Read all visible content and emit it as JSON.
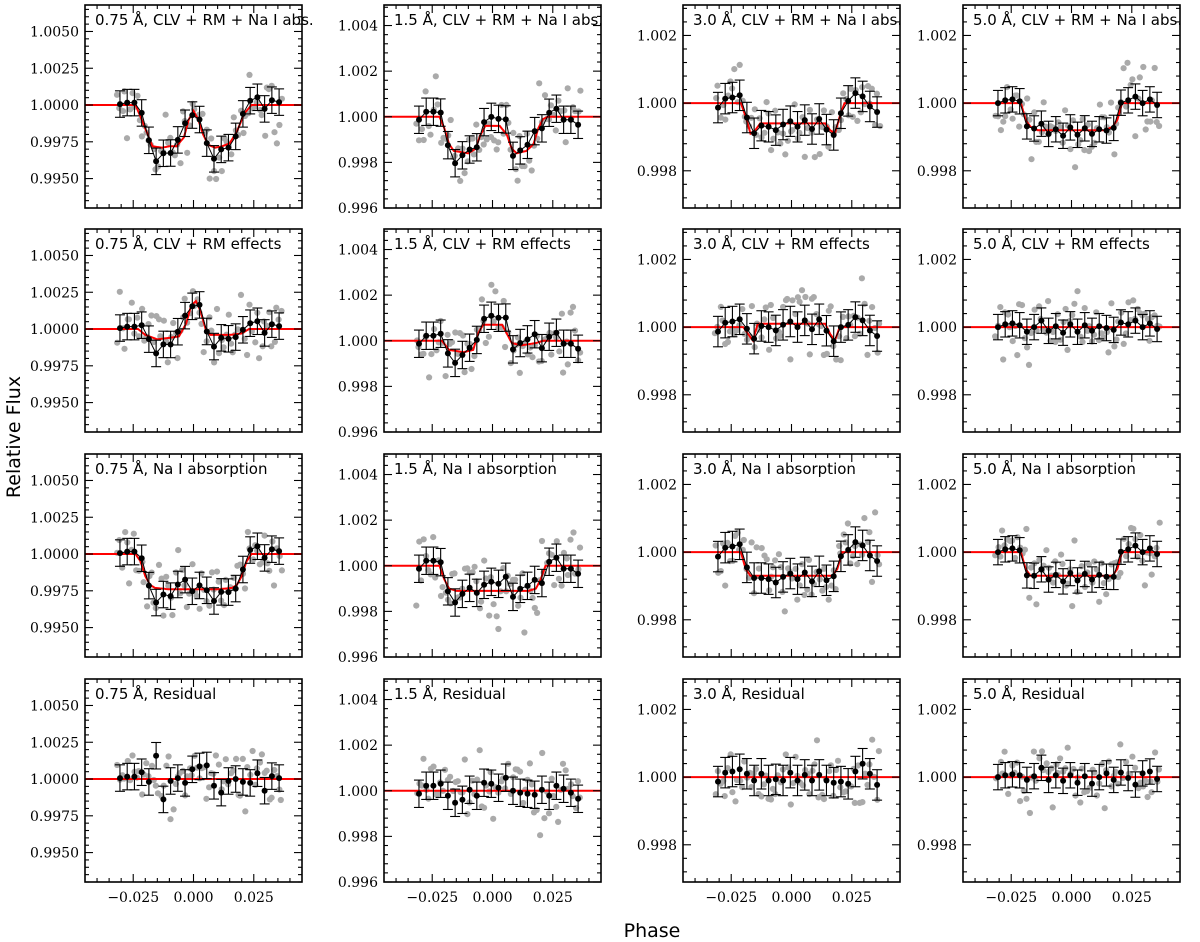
{
  "figure": {
    "xlabel": "Phase",
    "ylabel": "Relative Flux"
  },
  "style": {
    "model_color": "#ff0000",
    "binned_color": "#000000",
    "raw_color": "#aaaaaa"
  },
  "xaxis": {
    "range": [
      -0.045,
      0.045
    ],
    "ticks": [
      -0.025,
      0.0,
      0.025
    ],
    "tick_labels": [
      "−0.025",
      "0.000",
      "0.025"
    ]
  },
  "columns": [
    {
      "key": "0.75",
      "ylim": [
        0.993,
        1.0068
      ],
      "ticks": [
        0.995,
        0.9975,
        1.0,
        1.0025,
        1.005
      ],
      "tick_labels": [
        "0.9950",
        "0.9975",
        "1.0000",
        "1.0025",
        "1.0050"
      ],
      "noise": 0.0012,
      "raw_noise": 0.0019
    },
    {
      "key": "1.5",
      "ylim": [
        0.996,
        1.0049
      ],
      "ticks": [
        0.996,
        0.998,
        1.0,
        1.002,
        1.004
      ],
      "tick_labels": [
        "0.996",
        "0.998",
        "1.000",
        "1.002",
        "1.004"
      ],
      "noise": 0.0008,
      "raw_noise": 0.0013
    },
    {
      "key": "3.0",
      "ylim": [
        0.9969,
        1.0029
      ],
      "ticks": [
        0.998,
        1.0,
        1.002
      ],
      "tick_labels": [
        "0.998",
        "1.000",
        "1.002"
      ],
      "noise": 0.0006,
      "raw_noise": 0.0009
    },
    {
      "key": "5.0",
      "ylim": [
        0.9969,
        1.0029
      ],
      "ticks": [
        0.998,
        1.0,
        1.002
      ],
      "tick_labels": [
        "0.998",
        "1.000",
        "1.002"
      ],
      "noise": 0.0005,
      "raw_noise": 0.0008
    }
  ],
  "rows": [
    {
      "key": "clv_rm_na",
      "titles": [
        "0.75 Å, CLV + RM + Na I abs.",
        "1.5 Å, CLV + RM + Na I abs.",
        "3.0 Å, CLV + RM + Na I abs.",
        "5.0 Å, CLV + RM + Na I abs."
      ]
    },
    {
      "key": "clv_rm",
      "titles": [
        "0.75 Å, CLV + RM effects",
        "1.5 Å, CLV + RM effects",
        "3.0 Å, CLV + RM effects",
        "5.0 Å, CLV + RM effects"
      ]
    },
    {
      "key": "na",
      "titles": [
        "0.75 Å, Na I absorption",
        "1.5 Å, Na I absorption",
        "3.0 Å, Na I absorption",
        "5.0 Å, Na I absorption"
      ]
    },
    {
      "key": "residual",
      "titles": [
        "0.75 Å, Residual",
        "1.5 Å, Residual",
        "3.0 Å, Residual",
        "5.0 Å, Residual"
      ]
    }
  ],
  "chart_data": {
    "type": "scatter",
    "description_units": "phase vs relative flux",
    "binned_phase": [
      -0.0305,
      -0.0275,
      -0.0245,
      -0.0215,
      -0.0185,
      -0.0155,
      -0.0125,
      -0.0095,
      -0.0065,
      -0.0035,
      -0.0005,
      0.0025,
      0.0055,
      0.0085,
      0.0115,
      0.0145,
      0.0175,
      0.0205,
      0.0235,
      0.0265,
      0.0295,
      0.0325,
      0.0355
    ],
    "models": {
      "0.75": {
        "clv_rm_na": {
          "phase": [
            -0.045,
            -0.024,
            -0.021,
            -0.017,
            -0.013,
            -0.01,
            -0.007,
            -0.004,
            -0.002,
            0.0,
            0.002,
            0.004,
            0.006,
            0.009,
            0.012,
            0.015,
            0.018,
            0.021,
            0.024,
            0.045
          ],
          "flux": [
            1.0,
            1.0,
            0.9988,
            0.9972,
            0.9971,
            0.9972,
            0.9972,
            0.9978,
            0.999,
            0.9996,
            0.999,
            0.998,
            0.9973,
            0.9971,
            0.9972,
            0.9974,
            0.9982,
            0.9994,
            1.0,
            1.0
          ]
        },
        "clv_rm": {
          "phase": [
            -0.045,
            -0.023,
            -0.02,
            -0.015,
            -0.01,
            -0.006,
            -0.003,
            -0.001,
            0.001,
            0.003,
            0.005,
            0.007,
            0.01,
            0.015,
            0.02,
            0.023,
            0.045
          ],
          "flux": [
            1.0,
            1.0,
            0.9996,
            0.9993,
            0.9994,
            0.9995,
            1.0004,
            1.0016,
            1.0019,
            1.0012,
            1.0,
            0.9996,
            0.9996,
            0.9996,
            0.9997,
            1.0,
            1.0
          ]
        },
        "na": {
          "phase": [
            -0.045,
            -0.024,
            -0.022,
            -0.02,
            -0.018,
            -0.016,
            -0.01,
            0.0,
            0.01,
            0.016,
            0.018,
            0.02,
            0.022,
            0.024,
            0.045
          ],
          "flux": [
            1.0,
            1.0,
            0.9995,
            0.9985,
            0.9979,
            0.9977,
            0.9976,
            0.9976,
            0.9976,
            0.9977,
            0.9979,
            0.9985,
            0.9995,
            1.0,
            1.0
          ]
        },
        "residual": {
          "phase": [
            -0.045,
            0.045
          ],
          "flux": [
            1.0,
            1.0
          ]
        }
      },
      "1.5": {
        "clv_rm_na": {
          "phase": [
            -0.045,
            -0.022,
            -0.02,
            -0.018,
            -0.016,
            -0.01,
            -0.007,
            -0.005,
            -0.003,
            0.0,
            0.003,
            0.006,
            0.008,
            0.01,
            0.014,
            0.017,
            0.019,
            0.021,
            0.023,
            0.045
          ],
          "flux": [
            1.0,
            1.0,
            0.9995,
            0.9988,
            0.9985,
            0.9984,
            0.9986,
            0.9992,
            0.9996,
            0.9996,
            0.9996,
            0.9992,
            0.9986,
            0.9984,
            0.9985,
            0.9988,
            0.9995,
            0.9999,
            1.0,
            1.0
          ]
        },
        "clv_rm": {
          "phase": [
            -0.045,
            -0.021,
            -0.018,
            -0.012,
            -0.008,
            -0.006,
            -0.004,
            0.0,
            0.004,
            0.006,
            0.008,
            0.012,
            0.018,
            0.021,
            0.045
          ],
          "flux": [
            1.0,
            1.0,
            0.9996,
            0.9995,
            0.9996,
            1.0003,
            1.0007,
            1.0007,
            1.0007,
            1.0003,
            0.9999,
            0.9998,
            0.9999,
            1.0,
            1.0
          ]
        },
        "na": {
          "phase": [
            -0.045,
            -0.022,
            -0.02,
            -0.018,
            -0.015,
            -0.01,
            0.0,
            0.01,
            0.015,
            0.018,
            0.02,
            0.022,
            0.045
          ],
          "flux": [
            1.0,
            1.0,
            0.9994,
            0.999,
            0.9989,
            0.9989,
            0.9989,
            0.9989,
            0.9989,
            0.999,
            0.9994,
            1.0,
            1.0
          ]
        },
        "residual": {
          "phase": [
            -0.045,
            0.045
          ],
          "flux": [
            1.0,
            1.0
          ]
        }
      },
      "3.0": {
        "clv_rm_na": {
          "phase": [
            -0.045,
            -0.021,
            -0.019,
            -0.017,
            -0.015,
            -0.013,
            -0.01,
            0.0,
            0.01,
            0.014,
            0.016,
            0.018,
            0.02,
            0.022,
            0.045
          ],
          "flux": [
            1.0,
            1.0,
            0.9996,
            0.9991,
            0.9992,
            0.9994,
            0.9994,
            0.9994,
            0.9994,
            0.9994,
            0.9992,
            0.9991,
            0.9996,
            1.0,
            1.0
          ]
        },
        "clv_rm": {
          "phase": [
            -0.045,
            -0.02,
            -0.018,
            -0.016,
            -0.014,
            -0.01,
            0.0,
            0.01,
            0.014,
            0.016,
            0.018,
            0.02,
            0.045
          ],
          "flux": [
            1.0,
            1.0,
            0.9998,
            0.9996,
            1.0001,
            1.0001,
            1.0001,
            1.0001,
            1.0001,
            0.9998,
            0.9996,
            1.0,
            1.0
          ]
        },
        "na": {
          "phase": [
            -0.045,
            -0.021,
            -0.019,
            -0.017,
            -0.01,
            0.0,
            0.01,
            0.017,
            0.019,
            0.021,
            0.045
          ],
          "flux": [
            1.0,
            1.0,
            0.9995,
            0.9993,
            0.9993,
            0.9993,
            0.9993,
            0.9993,
            0.9995,
            1.0,
            1.0
          ]
        },
        "residual": {
          "phase": [
            -0.045,
            0.045
          ],
          "flux": [
            1.0,
            1.0
          ]
        }
      },
      "5.0": {
        "clv_rm_na": {
          "phase": [
            -0.045,
            -0.021,
            -0.019,
            -0.017,
            -0.014,
            -0.01,
            0.0,
            0.01,
            0.014,
            0.017,
            0.019,
            0.021,
            0.045
          ],
          "flux": [
            1.0,
            1.0,
            0.9995,
            0.9993,
            0.9992,
            0.9992,
            0.9992,
            0.9992,
            0.9992,
            0.9993,
            0.9995,
            1.0,
            1.0
          ]
        },
        "clv_rm": {
          "phase": [
            -0.045,
            0.045
          ],
          "flux": [
            1.0,
            1.0
          ]
        },
        "na": {
          "phase": [
            -0.045,
            -0.021,
            -0.019,
            -0.017,
            -0.014,
            -0.01,
            0.0,
            0.01,
            0.014,
            0.017,
            0.019,
            0.021,
            0.045
          ],
          "flux": [
            1.0,
            1.0,
            0.9995,
            0.9993,
            0.9993,
            0.9993,
            0.9993,
            0.9993,
            0.9993,
            0.9993,
            0.9995,
            1.0,
            1.0
          ]
        },
        "residual": {
          "phase": [
            -0.045,
            0.045
          ],
          "flux": [
            1.0,
            1.0
          ]
        }
      }
    },
    "binned_deviations": {
      "0.75": {
        "base": [
          0.1,
          0.25,
          0.25,
          0.7,
          -0.3,
          -1.5,
          -0.6,
          -0.7,
          0.5,
          1.0,
          -0.2,
          0.4,
          -0.1,
          -1.2,
          -0.3,
          -0.4,
          -0.3,
          0.3,
          0.6,
          0.8,
          -0.4,
          0.5,
          0.3
        ],
        "residual": [
          0.1,
          0.25,
          0.25,
          0.7,
          -0.3,
          2.4,
          -2.1,
          -0.2,
          0.1,
          -0.4,
          1.0,
          1.3,
          1.4,
          -0.7,
          -1.4,
          -0.2,
          0.0,
          -0.3,
          -0.4,
          0.6,
          -1.2,
          0.3,
          0.1
        ]
      },
      "1.5": {
        "base": [
          -0.3,
          0.5,
          0.5,
          0.7,
          -0.5,
          -1.2,
          -0.3,
          0.3,
          -0.2,
          0.6,
          0.9,
          0.7,
          1.4,
          -0.6,
          0.2,
          0.5,
          0.9,
          -0.7,
          0.4,
          0.8,
          -0.3,
          -0.3,
          -0.8
        ],
        "residual": [
          -0.3,
          0.5,
          0.5,
          0.7,
          -0.5,
          -1.2,
          -0.9,
          0.1,
          -0.5,
          0.8,
          0.7,
          0.3,
          1.3,
          0.0,
          -0.2,
          -0.3,
          -0.4,
          0.1,
          -0.5,
          0.5,
          0.2,
          -0.2,
          -0.8
        ]
      },
      "3.0": {
        "base": [
          -0.4,
          0.4,
          0.5,
          0.7,
          0.3,
          -0.2,
          -0.2,
          -0.3,
          -0.6,
          -0.1,
          0.2,
          -0.3,
          0.3,
          -0.5,
          0.4,
          -0.4,
          -0.2,
          0.0,
          0.2,
          0.9,
          0.6,
          -0.3,
          -0.8
        ],
        "residual": [
          -0.4,
          0.4,
          0.5,
          0.7,
          0.3,
          -0.3,
          0.3,
          -0.3,
          -0.2,
          -0.3,
          0.4,
          -0.3,
          0.2,
          -0.3,
          0.2,
          -0.3,
          -0.5,
          -0.4,
          -0.6,
          0.5,
          1.2,
          0.3,
          -0.7
        ]
      },
      "5.0": {
        "base": [
          0.0,
          0.3,
          0.4,
          0.2,
          -0.5,
          0.0,
          0.7,
          -0.4,
          0.1,
          -0.6,
          0.3,
          -0.5,
          0.2,
          -0.4,
          0.1,
          -0.1,
          -0.3,
          0.5,
          0.3,
          0.7,
          0.0,
          0.4,
          -0.2
        ],
        "residual": [
          0.0,
          0.2,
          0.3,
          0.2,
          -0.3,
          0.1,
          1.0,
          -0.3,
          0.2,
          -0.4,
          0.2,
          -0.6,
          0.1,
          -0.7,
          0.0,
          0.4,
          -0.3,
          0.5,
          -0.1,
          -0.8,
          0.4,
          0.6,
          -0.2
        ]
      }
    },
    "binned_error_fraction": 0.75,
    "raw_points_per_bin": 3
  }
}
